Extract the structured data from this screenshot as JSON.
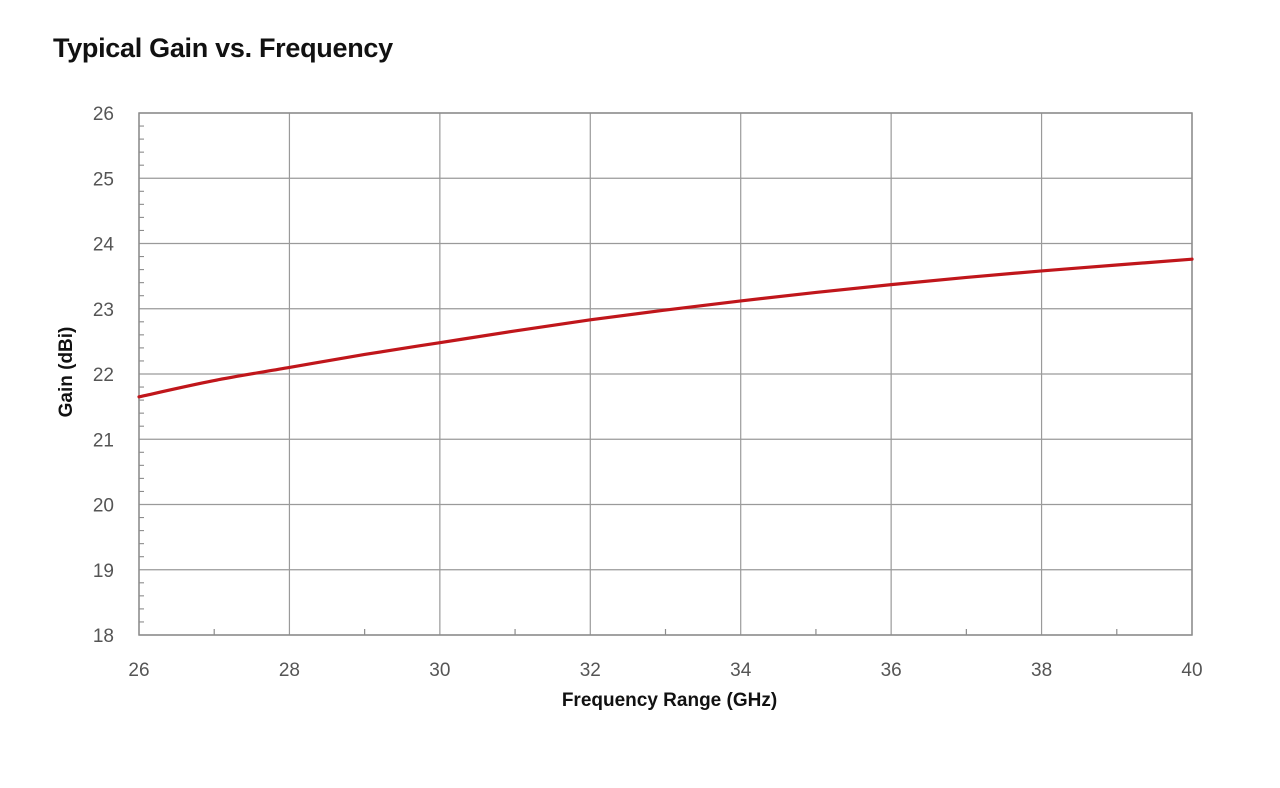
{
  "chart_data": {
    "type": "line",
    "title": "Typical Gain vs. Frequency",
    "xlabel": "Frequency Range (GHz)",
    "ylabel": "Gain (dBi)",
    "xlim": [
      26,
      40
    ],
    "ylim": [
      18,
      26
    ],
    "x_ticks": [
      "26",
      "28",
      "30",
      "32",
      "34",
      "36",
      "38",
      "40"
    ],
    "y_ticks": [
      "18",
      "19",
      "20",
      "21",
      "22",
      "23",
      "24",
      "25",
      "26"
    ],
    "grid": true,
    "legend": "none",
    "series": [
      {
        "color": "#c0161b",
        "x": [
          26,
          27,
          28,
          29,
          30,
          31,
          32,
          33,
          34,
          35,
          36,
          37,
          38,
          39,
          40
        ],
        "y": [
          21.65,
          21.9,
          22.1,
          22.3,
          22.48,
          22.66,
          22.83,
          22.98,
          23.12,
          23.25,
          23.37,
          23.48,
          23.58,
          23.67,
          23.76
        ]
      }
    ]
  }
}
